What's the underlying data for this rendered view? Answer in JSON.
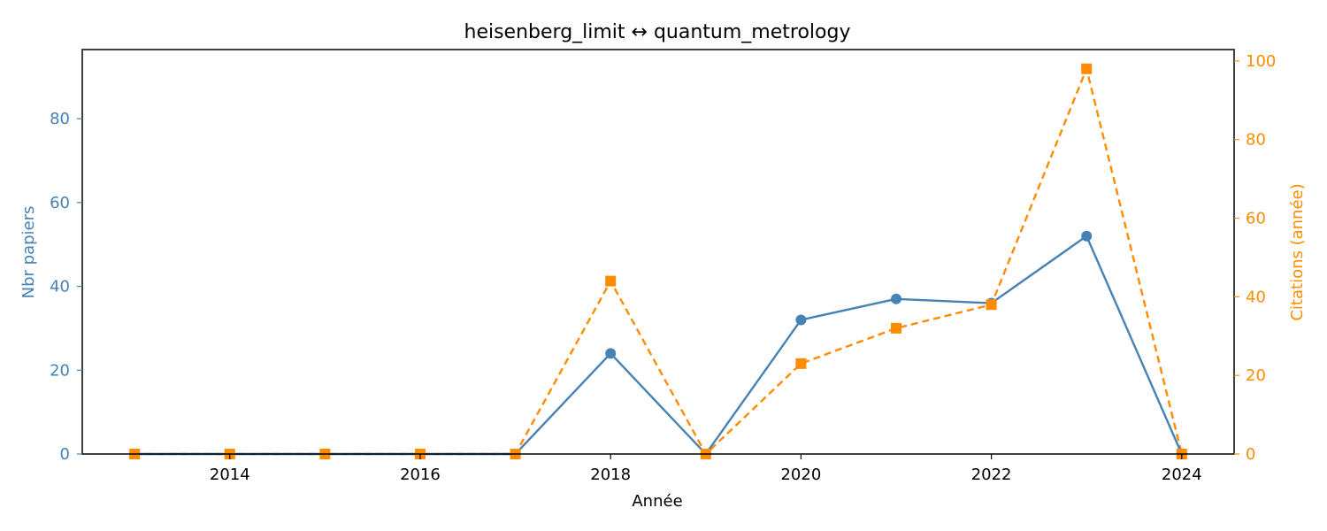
{
  "chart_data": {
    "type": "line",
    "title": "heisenberg_limit  ↔  quantum_metrology",
    "xlabel": "Année",
    "ylabel_left": "Nbr papiers",
    "ylabel_right": "Citations (année)",
    "x": [
      2013,
      2014,
      2015,
      2016,
      2017,
      2018,
      2019,
      2020,
      2021,
      2022,
      2023,
      2024
    ],
    "xlim": [
      2012.45,
      2024.55
    ],
    "xticks": [
      2014,
      2016,
      2018,
      2020,
      2022,
      2024
    ],
    "ylim_left": [
      0,
      96.5
    ],
    "yticks_left": [
      0,
      20,
      40,
      60,
      80
    ],
    "ylim_right": [
      0,
      102.9
    ],
    "yticks_right": [
      0,
      20,
      40,
      60,
      80,
      100
    ],
    "grid": false,
    "legend": "none",
    "series": [
      {
        "axis": "left",
        "color": "#4682b4",
        "marker": "circle",
        "linestyle": "solid",
        "values": [
          0,
          0,
          0,
          0,
          0,
          24,
          0,
          32,
          37,
          36,
          52,
          0
        ]
      },
      {
        "axis": "right",
        "color": "#ff8c00",
        "marker": "square",
        "linestyle": "dashed",
        "values": [
          0,
          0,
          0,
          0,
          0,
          44,
          0,
          23,
          32,
          38,
          98,
          0
        ]
      }
    ]
  }
}
